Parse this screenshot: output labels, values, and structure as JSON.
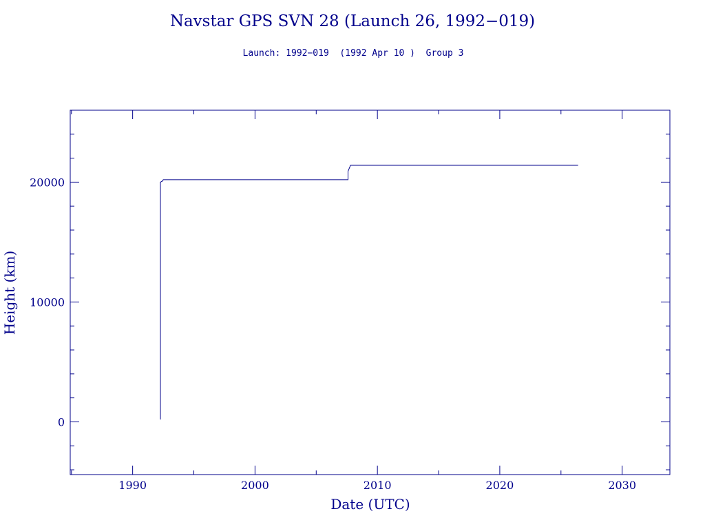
{
  "chart_data": {
    "type": "line",
    "title": "Navstar GPS SVN 28 (Launch 26, 1992−019)",
    "subtitle": "Launch: 1992−019  (1992 Apr 10 )  Group 3",
    "xlabel": "Date (UTC)",
    "ylabel": "Height (km)",
    "xlim": [
      1984.9,
      2033.9
    ],
    "ylim": [
      -4400,
      26000
    ],
    "x_ticks": [
      1990,
      2000,
      2010,
      2020,
      2030
    ],
    "y_ticks": [
      0,
      10000,
      20000
    ],
    "grid": false,
    "line_color": "#00008b",
    "series": [
      {
        "x": [
          1992.27,
          1992.27,
          1992.45,
          1992.5,
          2007.6,
          2007.6,
          2007.8,
          2026.4
        ],
        "y": [
          200,
          20000,
          20100,
          20200,
          20200,
          20900,
          21400,
          21400
        ]
      }
    ]
  }
}
